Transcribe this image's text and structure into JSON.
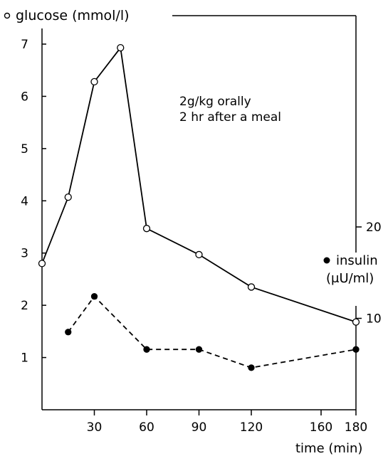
{
  "chart_data": {
    "type": "line",
    "annotation_lines": [
      "2g/kg orally",
      "2 hr after a meal"
    ],
    "x_axis": {
      "label": "time (min)",
      "ticks": [
        30,
        60,
        90,
        120,
        160,
        180
      ],
      "range": [
        0,
        180
      ]
    },
    "y_axis_left": {
      "label": "glucose (mmol/l)",
      "ticks": [
        1,
        2,
        3,
        4,
        5,
        6,
        7
      ],
      "range": [
        0,
        7
      ]
    },
    "y_axis_right": {
      "label_line1": "insulin",
      "label_line2": "(μU/ml)",
      "ticks": [
        10,
        20
      ],
      "range": [
        0,
        40
      ]
    },
    "series": [
      {
        "name": "glucose (mmol/l)",
        "marker": "open-circle",
        "line_style": "solid",
        "axis": "left",
        "points": [
          {
            "x": 0,
            "y": 2.8
          },
          {
            "x": 15,
            "y": 4.07
          },
          {
            "x": 30,
            "y": 6.28
          },
          {
            "x": 45,
            "y": 6.93
          },
          {
            "x": 60,
            "y": 3.47
          },
          {
            "x": 90,
            "y": 2.97
          },
          {
            "x": 120,
            "y": 2.35
          },
          {
            "x": 180,
            "y": 1.68
          }
        ]
      },
      {
        "name": "insulin",
        "marker": "filled-circle",
        "line_style": "dashed",
        "axis": "right",
        "points": [
          {
            "x": 15,
            "y": 8.5
          },
          {
            "x": 30,
            "y": 12.4
          },
          {
            "x": 60,
            "y": 6.6
          },
          {
            "x": 90,
            "y": 6.6
          },
          {
            "x": 120,
            "y": 4.6
          },
          {
            "x": 180,
            "y": 6.6
          }
        ]
      }
    ],
    "grid": false
  }
}
